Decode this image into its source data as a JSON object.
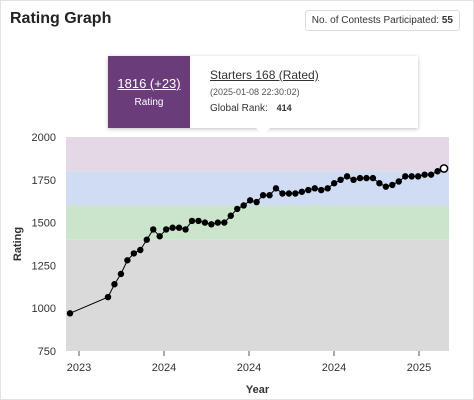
{
  "header": {
    "title": "Rating Graph",
    "contests_label": "No. of Contests Participated:",
    "contests_count": "55"
  },
  "tooltip": {
    "rating": "1816 (+23)",
    "rating_label": "Rating",
    "contest": "Starters 168 (Rated)",
    "date": "(2025-01-08 22:30:02)",
    "rank_label": "Global Rank:",
    "rank": "414"
  },
  "colors": {
    "series": "#000000",
    "band_purple": "#e5d8e6",
    "band_blue": "#cfdcf3",
    "band_green": "#cbe5cd",
    "band_gray": "#dadada",
    "tooltip_accent": "#6a3d7a"
  },
  "chart_data": {
    "type": "line",
    "xlabel": "Year",
    "ylabel": "Rating",
    "x_tick_labels": [
      "2023",
      "2024",
      "2024",
      "2024",
      "2025"
    ],
    "ylim": [
      750,
      2000
    ],
    "yticks": [
      750,
      1000,
      1250,
      1500,
      1750,
      2000
    ],
    "grid": false,
    "bands": [
      {
        "from": 750,
        "to": 1400,
        "color": "#dadada"
      },
      {
        "from": 1400,
        "to": 1600,
        "color": "#cbe5cd"
      },
      {
        "from": 1600,
        "to": 1800,
        "color": "#cfdcf3"
      },
      {
        "from": 1800,
        "to": 2000,
        "color": "#e5d8e6"
      }
    ],
    "series": [
      {
        "values": [
          970,
          1065,
          1140,
          1200,
          1280,
          1320,
          1340,
          1400,
          1460,
          1420,
          1460,
          1470,
          1470,
          1460,
          1510,
          1510,
          1500,
          1490,
          1500,
          1500,
          1540,
          1580,
          1600,
          1630,
          1620,
          1660,
          1660,
          1700,
          1670,
          1670,
          1670,
          1680,
          1690,
          1700,
          1690,
          1700,
          1730,
          1750,
          1770,
          1750,
          1760,
          1760,
          1760,
          1730,
          1710,
          1720,
          1740,
          1770,
          1770,
          1770,
          1780,
          1780,
          1800,
          1816
        ]
      }
    ]
  }
}
